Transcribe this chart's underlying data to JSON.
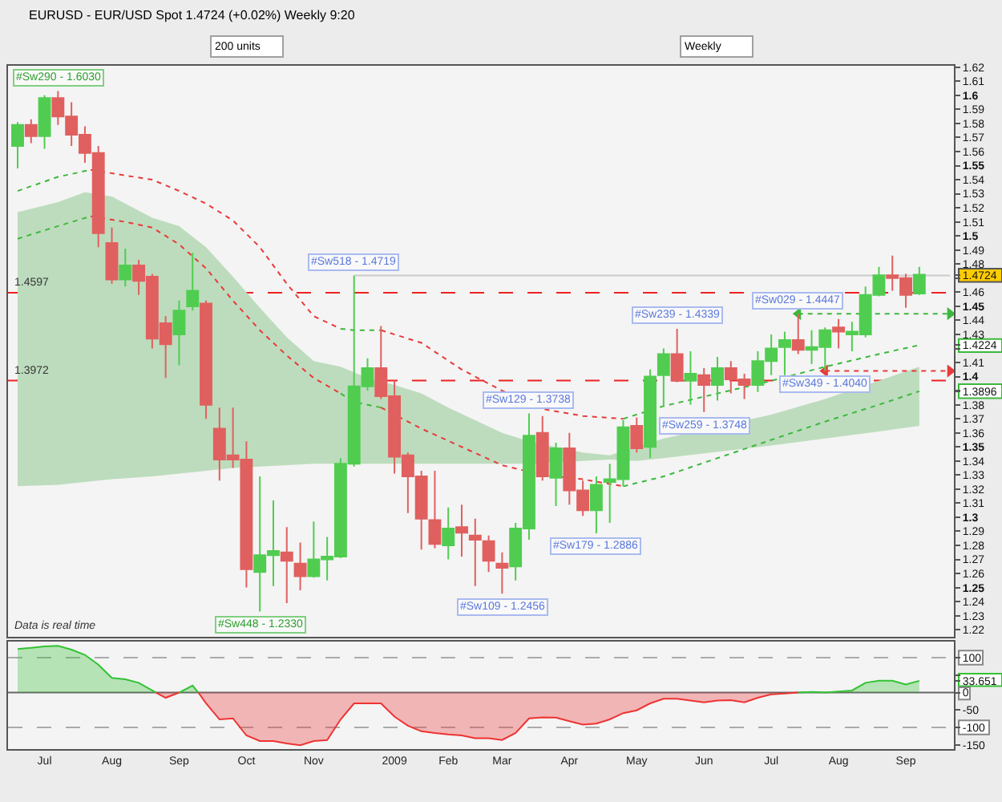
{
  "chart_data": [
    {
      "type": "candlestick",
      "title": "EURUSD - EUR/USD Spot 1.4724 (+0.02%) Weekly 9:20",
      "annotations": [
        "200 units",
        "Weekly",
        "Data is real time",
        {
          "text": "#Sw290 - 1.6030",
          "x": "2008-07-14",
          "y": 1.603
        },
        {
          "text": "#Sw448 - 1.2330",
          "x": "2008-10-27",
          "y": 1.233
        },
        {
          "text": "#Sw518 - 1.4719",
          "x": "2008-12-15",
          "y": 1.4719
        },
        {
          "text": "#Sw109 - 1.2456",
          "x": "2009-03-02",
          "y": 1.2456
        },
        {
          "text": "#Sw129 - 1.3738",
          "x": "2009-03-16",
          "y": 1.3738
        },
        {
          "text": "#Sw179 - 1.2886",
          "x": "2009-04-20",
          "y": 1.2886
        },
        {
          "text": "#Sw239 - 1.4339",
          "x": "2009-06-01",
          "y": 1.4339
        },
        {
          "text": "#Sw259 - 1.3748",
          "x": "2009-06-15",
          "y": 1.3748
        },
        {
          "text": "#Sw029 - 1.4447",
          "x": "2009-08-03",
          "y": 1.4447
        },
        {
          "text": "#Sw349 - 1.4040",
          "x": "2009-08-17",
          "y": 1.404
        }
      ],
      "x": [
        "2008-06-23",
        "2008-06-30",
        "2008-07-07",
        "2008-07-14",
        "2008-07-21",
        "2008-07-28",
        "2008-08-04",
        "2008-08-11",
        "2008-08-18",
        "2008-08-25",
        "2008-09-01",
        "2008-09-08",
        "2008-09-15",
        "2008-09-22",
        "2008-09-29",
        "2008-10-06",
        "2008-10-13",
        "2008-10-20",
        "2008-10-27",
        "2008-11-03",
        "2008-11-10",
        "2008-11-17",
        "2008-11-24",
        "2008-12-01",
        "2008-12-08",
        "2008-12-15",
        "2008-12-22",
        "2008-12-29",
        "2009-01-05",
        "2009-01-12",
        "2009-01-19",
        "2009-01-26",
        "2009-02-02",
        "2009-02-09",
        "2009-02-16",
        "2009-02-23",
        "2009-03-02",
        "2009-03-09",
        "2009-03-16",
        "2009-03-23",
        "2009-03-30",
        "2009-04-06",
        "2009-04-13",
        "2009-04-20",
        "2009-04-27",
        "2009-05-04",
        "2009-05-11",
        "2009-05-18",
        "2009-05-25",
        "2009-06-01",
        "2009-06-08",
        "2009-06-15",
        "2009-06-22",
        "2009-06-29",
        "2009-07-06",
        "2009-07-13",
        "2009-07-20",
        "2009-07-27",
        "2009-08-03",
        "2009-08-10",
        "2009-08-17",
        "2009-08-24",
        "2009-08-31",
        "2009-09-07",
        "2009-09-14",
        "2009-09-21",
        "2009-09-28",
        "2009-10-05"
      ],
      "ohlc": [
        [
          1.564,
          1.581,
          1.548,
          1.579
        ],
        [
          1.579,
          1.583,
          1.566,
          1.571
        ],
        [
          1.571,
          1.6,
          1.562,
          1.598
        ],
        [
          1.598,
          1.603,
          1.579,
          1.585
        ],
        [
          1.585,
          1.595,
          1.564,
          1.572
        ],
        [
          1.572,
          1.578,
          1.552,
          1.559
        ],
        [
          1.559,
          1.564,
          1.492,
          1.502
        ],
        [
          1.495,
          1.506,
          1.466,
          1.469
        ],
        [
          1.469,
          1.491,
          1.464,
          1.479
        ],
        [
          1.479,
          1.483,
          1.458,
          1.468
        ],
        [
          1.471,
          1.473,
          1.42,
          1.427
        ],
        [
          1.438,
          1.443,
          1.399,
          1.423
        ],
        [
          1.43,
          1.454,
          1.408,
          1.447
        ],
        [
          1.45,
          1.488,
          1.447,
          1.461
        ],
        [
          1.452,
          1.454,
          1.37,
          1.38
        ],
        [
          1.363,
          1.378,
          1.326,
          1.341
        ],
        [
          1.344,
          1.378,
          1.335,
          1.341
        ],
        [
          1.341,
          1.354,
          1.25,
          1.263
        ],
        [
          1.261,
          1.329,
          1.233,
          1.273
        ],
        [
          1.273,
          1.312,
          1.251,
          1.276
        ],
        [
          1.275,
          1.293,
          1.239,
          1.269
        ],
        [
          1.267,
          1.282,
          1.248,
          1.258
        ],
        [
          1.258,
          1.297,
          1.257,
          1.27
        ],
        [
          1.27,
          1.286,
          1.255,
          1.272
        ],
        [
          1.272,
          1.342,
          1.271,
          1.338
        ],
        [
          1.338,
          1.4719,
          1.336,
          1.393
        ],
        [
          1.393,
          1.413,
          1.39,
          1.406
        ],
        [
          1.406,
          1.436,
          1.384,
          1.386
        ],
        [
          1.386,
          1.397,
          1.331,
          1.343
        ],
        [
          1.344,
          1.346,
          1.303,
          1.329
        ],
        [
          1.329,
          1.333,
          1.277,
          1.299
        ],
        [
          1.298,
          1.333,
          1.278,
          1.281
        ],
        [
          1.28,
          1.307,
          1.27,
          1.292
        ],
        [
          1.293,
          1.309,
          1.272,
          1.289
        ],
        [
          1.287,
          1.299,
          1.251,
          1.284
        ],
        [
          1.283,
          1.287,
          1.261,
          1.269
        ],
        [
          1.267,
          1.275,
          1.2456,
          1.264
        ],
        [
          1.265,
          1.296,
          1.255,
          1.292
        ],
        [
          1.292,
          1.3738,
          1.284,
          1.358
        ],
        [
          1.36,
          1.372,
          1.326,
          1.329
        ],
        [
          1.328,
          1.353,
          1.308,
          1.349
        ],
        [
          1.349,
          1.36,
          1.309,
          1.319
        ],
        [
          1.319,
          1.326,
          1.301,
          1.305
        ],
        [
          1.305,
          1.329,
          1.2886,
          1.323
        ],
        [
          1.325,
          1.338,
          1.296,
          1.327
        ],
        [
          1.327,
          1.369,
          1.322,
          1.364
        ],
        [
          1.365,
          1.371,
          1.346,
          1.349
        ],
        [
          1.35,
          1.405,
          1.342,
          1.4
        ],
        [
          1.401,
          1.42,
          1.379,
          1.416
        ],
        [
          1.416,
          1.4339,
          1.396,
          1.397
        ],
        [
          1.397,
          1.418,
          1.38,
          1.402
        ],
        [
          1.401,
          1.406,
          1.3748,
          1.394
        ],
        [
          1.394,
          1.414,
          1.383,
          1.406
        ],
        [
          1.406,
          1.411,
          1.388,
          1.398
        ],
        [
          1.398,
          1.402,
          1.384,
          1.394
        ],
        [
          1.394,
          1.418,
          1.389,
          1.411
        ],
        [
          1.411,
          1.43,
          1.401,
          1.42
        ],
        [
          1.421,
          1.432,
          1.401,
          1.426
        ],
        [
          1.426,
          1.4447,
          1.416,
          1.419
        ],
        [
          1.419,
          1.433,
          1.409,
          1.421
        ],
        [
          1.421,
          1.435,
          1.404,
          1.433
        ],
        [
          1.435,
          1.441,
          1.42,
          1.432
        ],
        [
          1.43,
          1.439,
          1.418,
          1.432
        ],
        [
          1.43,
          1.464,
          1.428,
          1.458
        ],
        [
          1.458,
          1.478,
          1.457,
          1.472
        ],
        [
          1.472,
          1.486,
          1.461,
          1.47
        ],
        [
          1.47,
          1.473,
          1.449,
          1.458
        ],
        [
          1.459,
          1.478,
          1.458,
          1.4724
        ]
      ],
      "colors": [
        "#50cd50",
        "#e0605f",
        "#50cd50",
        "#e0605f",
        "#e0605f",
        "#e0605f",
        "#e0605f",
        "#e0605f",
        "#50cd50",
        "#e0605f",
        "#e0605f",
        "#e0605f",
        "#50cd50",
        "#50cd50",
        "#e0605f",
        "#e0605f",
        "#e0605f",
        "#e0605f",
        "#50cd50",
        "#50cd50",
        "#e0605f",
        "#e0605f",
        "#50cd50",
        "#50cd50",
        "#50cd50",
        "#50cd50",
        "#50cd50",
        "#e0605f",
        "#e0605f",
        "#e0605f",
        "#e0605f",
        "#e0605f",
        "#50cd50",
        "#e0605f",
        "#e0605f",
        "#e0605f",
        "#e0605f",
        "#50cd50",
        "#50cd50",
        "#e0605f",
        "#50cd50",
        "#e0605f",
        "#e0605f",
        "#50cd50",
        "#50cd50",
        "#50cd50",
        "#e0605f",
        "#50cd50",
        "#50cd50",
        "#e0605f",
        "#50cd50",
        "#e0605f",
        "#50cd50",
        "#e0605f",
        "#e0605f",
        "#50cd50",
        "#50cd50",
        "#50cd50",
        "#e0605f",
        "#50cd50",
        "#50cd50",
        "#e0605f",
        "#50cd50",
        "#50cd50",
        "#50cd50",
        "#e0605f",
        "#e0605f",
        "#50cd50"
      ],
      "series": [
        {
          "type": "line",
          "color": "#bddcbd",
          "x": [
            "2008-06-23",
            "2008-07-14",
            "2008-07-28",
            "2008-08-11",
            "2008-09-01",
            "2008-09-15",
            "2008-09-29",
            "2008-10-13",
            "2008-10-27",
            "2008-11-10",
            "2008-11-24",
            "2008-12-08",
            "2008-12-22",
            "2009-01-05",
            "2009-01-19",
            "2009-02-02",
            "2009-02-16",
            "2009-03-02",
            "2009-03-16",
            "2009-03-30",
            "2009-04-13",
            "2009-04-27",
            "2009-05-11",
            "2009-05-25",
            "2009-07-20",
            "2009-08-17",
            "2009-09-14",
            "2009-10-05"
          ],
          "values": [
            null,
            null,
            null,
            null,
            null,
            null,
            null,
            null,
            null,
            null,
            null,
            null,
            null,
            null,
            null,
            null,
            null,
            null,
            null,
            null,
            null,
            null,
            null,
            null,
            null,
            null,
            null,
            null
          ],
          "lower": [
            1.322,
            1.323,
            1.325,
            1.327,
            1.329,
            1.331,
            1.333,
            1.335,
            1.336,
            1.337,
            1.338,
            1.338,
            1.338,
            1.338,
            1.338,
            1.338,
            1.338,
            1.338,
            1.338,
            1.339,
            1.34,
            1.341,
            1.34,
            1.342,
            1.351,
            1.356,
            1.361,
            1.365
          ],
          "upper": [
            1.517,
            1.524,
            1.531,
            1.528,
            1.513,
            1.507,
            1.492,
            1.471,
            1.449,
            1.428,
            1.411,
            1.407,
            1.399,
            1.394,
            1.388,
            1.378,
            1.369,
            1.36,
            1.354,
            1.35,
            1.346,
            1.344,
            1.35,
            1.356,
            1.373,
            1.384,
            1.397,
            1.407
          ]
        },
        {
          "type": "line",
          "color": "#cccccc",
          "x": [
            "2008-12-15",
            "2009-10-21"
          ],
          "values": [
            1.4719,
            1.4719
          ]
        },
        {
          "type": "line",
          "color": "#3cb83c",
          "line_style": "dotted",
          "x": [
            "2008-06-23",
            "2008-07-14",
            "2008-07-31"
          ],
          "values": [
            1.532,
            1.542,
            1.547
          ]
        },
        {
          "type": "line",
          "color": "#e83a3a",
          "line_style": "dotted",
          "x": [
            "2008-07-31",
            "2008-08-18",
            "2008-09-01",
            "2008-09-15",
            "2008-09-29",
            "2008-10-13",
            "2008-10-27",
            "2008-11-10",
            "2008-11-24",
            "2008-12-08"
          ],
          "values": [
            1.547,
            1.543,
            1.54,
            1.532,
            1.523,
            1.511,
            1.492,
            1.466,
            1.443,
            1.434
          ]
        },
        {
          "type": "line",
          "color": "#3cb83c",
          "line_style": "dotted",
          "x": [
            "2008-12-08",
            "2008-12-15",
            "2008-12-29"
          ],
          "values": [
            1.434,
            1.433,
            1.433
          ]
        },
        {
          "type": "line",
          "color": "#e83a3a",
          "line_style": "dotted",
          "x": [
            "2008-12-29",
            "2009-01-19",
            "2009-02-09",
            "2009-03-02",
            "2009-03-23",
            "2009-04-13",
            "2009-05-04"
          ],
          "values": [
            1.433,
            1.424,
            1.405,
            1.39,
            1.377,
            1.372,
            1.37
          ]
        },
        {
          "type": "line",
          "color": "#3cb83c",
          "line_style": "dotted",
          "x": [
            "2009-05-04",
            "2009-05-25",
            "2009-06-22",
            "2009-07-20",
            "2009-08-17",
            "2009-09-14",
            "2009-10-05"
          ],
          "values": [
            1.37,
            1.379,
            1.388,
            1.397,
            1.407,
            1.416,
            1.4224
          ]
        },
        {
          "type": "line",
          "color": "#3cb83c",
          "line_style": "dotted",
          "x": [
            "2008-06-23",
            "2008-07-14",
            "2008-07-31"
          ],
          "values": [
            1.498,
            1.507,
            1.514
          ]
        },
        {
          "type": "line",
          "color": "#e83a3a",
          "line_style": "dotted",
          "x": [
            "2008-07-31",
            "2008-08-18",
            "2008-09-01",
            "2008-09-15",
            "2008-09-29",
            "2008-10-13",
            "2008-10-27",
            "2008-11-10",
            "2008-11-24",
            "2008-12-08"
          ],
          "values": [
            1.514,
            1.51,
            1.506,
            1.494,
            1.477,
            1.454,
            1.433,
            1.415,
            1.399,
            1.388
          ]
        },
        {
          "type": "line",
          "color": "#3cb83c",
          "line_style": "dotted",
          "x": [
            "2008-12-08",
            "2008-12-15",
            "2008-12-29"
          ],
          "values": [
            1.388,
            1.382,
            1.378
          ]
        },
        {
          "type": "line",
          "color": "#e83a3a",
          "line_style": "dotted",
          "x": [
            "2008-12-29",
            "2009-01-19",
            "2009-02-09",
            "2009-03-02",
            "2009-03-23",
            "2009-04-13",
            "2009-05-04"
          ],
          "values": [
            1.378,
            1.363,
            1.35,
            1.337,
            1.33,
            1.327,
            1.322
          ]
        },
        {
          "type": "line",
          "color": "#3cb83c",
          "line_style": "dotted",
          "x": [
            "2009-05-04",
            "2009-05-25",
            "2009-06-22",
            "2009-07-20",
            "2009-08-17",
            "2009-09-14",
            "2009-10-05"
          ],
          "values": [
            1.322,
            1.329,
            1.342,
            1.355,
            1.368,
            1.38,
            1.3896
          ]
        },
        {
          "type": "line",
          "color": "#3cb83c",
          "line_style": "dotted",
          "marker": "triangle",
          "x": [
            "2009-08-03",
            "2009-10-21"
          ],
          "values": [
            1.4447,
            1.4447
          ]
        },
        {
          "type": "line",
          "color": "#e83a3a",
          "line_style": "dotted",
          "marker": "triangle",
          "x": [
            "2009-08-17",
            "2009-10-21"
          ],
          "values": [
            1.404,
            1.404
          ]
        }
      ],
      "ref_lines": [
        {
          "axis": "y",
          "value": 1.4597,
          "label": "1.4597",
          "color": "#ee2222",
          "line_style": "dashed"
        },
        {
          "axis": "y",
          "value": 1.3972,
          "label": "1.3972",
          "color": "#ee2222",
          "line_style": "dashed"
        }
      ],
      "xlim": [
        "2008-06-18",
        "2009-10-23"
      ],
      "ylim": [
        1.215,
        1.621
      ],
      "yticks": [
        1.22,
        1.23,
        1.24,
        1.25,
        1.26,
        1.27,
        1.28,
        1.29,
        1.3,
        1.31,
        1.32,
        1.33,
        1.34,
        1.35,
        1.36,
        1.37,
        1.38,
        1.3896,
        {
          "value": 1.39,
          "label": null
        },
        1.4,
        1.41,
        {
          "value": 1.42,
          "label": null
        },
        1.4224,
        1.43,
        1.44,
        1.45,
        1.46,
        {
          "value": 1.47,
          "label": null
        },
        1.4724,
        1.48,
        1.49,
        1.5,
        1.51,
        1.52,
        1.53,
        1.54,
        1.55,
        1.56,
        1.57,
        1.58,
        1.59,
        1.6,
        1.61,
        1.62
      ],
      "tick_labels": "y"
    },
    {
      "type": "area",
      "series": [
        {
          "color": "#33c233",
          "x": [
            "2008-06-23",
            "2008-06-30",
            "2008-07-07",
            "2008-07-14",
            "2008-07-21",
            "2008-07-28",
            "2008-08-04",
            "2008-08-11",
            "2008-08-18",
            "2008-08-25",
            "2008-09-01",
            "2008-09-03"
          ],
          "values": [
            125,
            128,
            132,
            134,
            123,
            108,
            80,
            42,
            38,
            28,
            6,
            0
          ]
        },
        {
          "color": "#ee3333",
          "x": [
            "2008-09-03",
            "2008-09-08",
            "2008-09-15"
          ],
          "values": [
            0,
            -15,
            0
          ]
        },
        {
          "color": "#33c233",
          "x": [
            "2008-09-15",
            "2008-09-22",
            "2008-09-25"
          ],
          "values": [
            0,
            20,
            0
          ]
        },
        {
          "color": "#ee3333",
          "x": [
            "2008-09-25",
            "2008-09-29",
            "2008-10-06",
            "2008-10-13",
            "2008-10-20",
            "2008-10-27",
            "2008-11-03",
            "2008-11-10",
            "2008-11-17",
            "2008-11-24",
            "2008-12-01",
            "2008-12-08",
            "2008-12-15",
            "2008-12-22",
            "2008-12-29",
            "2009-01-05",
            "2009-01-12",
            "2009-01-19",
            "2009-01-26",
            "2009-02-02",
            "2009-02-09",
            "2009-02-16",
            "2009-02-23",
            "2009-03-02",
            "2009-03-09",
            "2009-03-16",
            "2009-03-23",
            "2009-03-30",
            "2009-04-06",
            "2009-04-13",
            "2009-04-20",
            "2009-04-27",
            "2009-05-04",
            "2009-05-11",
            "2009-05-18",
            "2009-05-25",
            "2009-06-01",
            "2009-06-08",
            "2009-06-15",
            "2009-06-22",
            "2009-06-29",
            "2009-07-06",
            "2009-07-13",
            "2009-07-20",
            "2009-07-27",
            "2009-08-03"
          ],
          "values": [
            0,
            -31,
            -77,
            -74,
            -123,
            -139,
            -139,
            -146,
            -151,
            -139,
            -136,
            -77,
            -31,
            -31,
            -31,
            -69,
            -95,
            -111,
            -116,
            -120,
            -123,
            -131,
            -131,
            -136,
            -116,
            -74,
            -71,
            -72,
            -82,
            -92,
            -89,
            -77,
            -59,
            -51,
            -31,
            -18,
            -18,
            -23,
            -28,
            -23,
            -22,
            -28,
            -15,
            -5,
            -3,
            0
          ]
        },
        {
          "color": "#33c233",
          "x": [
            "2009-08-03",
            "2009-08-10",
            "2009-08-17",
            "2009-08-24",
            "2009-08-31",
            "2009-09-07",
            "2009-09-14",
            "2009-09-21",
            "2009-09-28",
            "2009-10-05"
          ],
          "values": [
            0,
            2,
            0,
            3,
            6,
            28,
            34,
            34,
            23,
            33.651
          ]
        }
      ],
      "ref_lines": [
        {
          "axis": "y",
          "value": 100,
          "color": "#aaaaaa",
          "line_style": "dashed"
        },
        {
          "axis": "y",
          "value": 0,
          "color": "#666666"
        },
        {
          "axis": "y",
          "value": -100,
          "color": "#aaaaaa",
          "line_style": "dashed"
        }
      ],
      "xlim": [
        "2008-06-18",
        "2009-10-23"
      ],
      "xticks": [
        {
          "value": "2008-07-07",
          "label": "Jul"
        },
        {
          "value": "2008-08-11",
          "label": "Aug"
        },
        {
          "value": "2008-09-15",
          "label": "Sep"
        },
        {
          "value": "2008-10-20",
          "label": "Oct"
        },
        {
          "value": "2008-11-24",
          "label": "Nov"
        },
        {
          "value": "2009-01-05",
          "label": "2009"
        },
        {
          "value": "2009-02-02",
          "label": "Feb"
        },
        {
          "value": "2009-03-02",
          "label": "Mar"
        },
        {
          "value": "2009-04-06",
          "label": "Apr"
        },
        {
          "value": "2009-05-11",
          "label": "May"
        },
        {
          "value": "2009-06-15",
          "label": "Jun"
        },
        {
          "value": "2009-07-20",
          "label": "Jul"
        },
        {
          "value": "2009-08-24",
          "label": "Aug"
        },
        {
          "value": "2009-09-28",
          "label": "Sep"
        }
      ],
      "ylim": [
        -162,
        146
      ],
      "yticks": [
        100,
        {
          "value": 50,
          "label": null
        },
        33.651,
        0,
        -50,
        -100,
        -150
      ]
    }
  ]
}
